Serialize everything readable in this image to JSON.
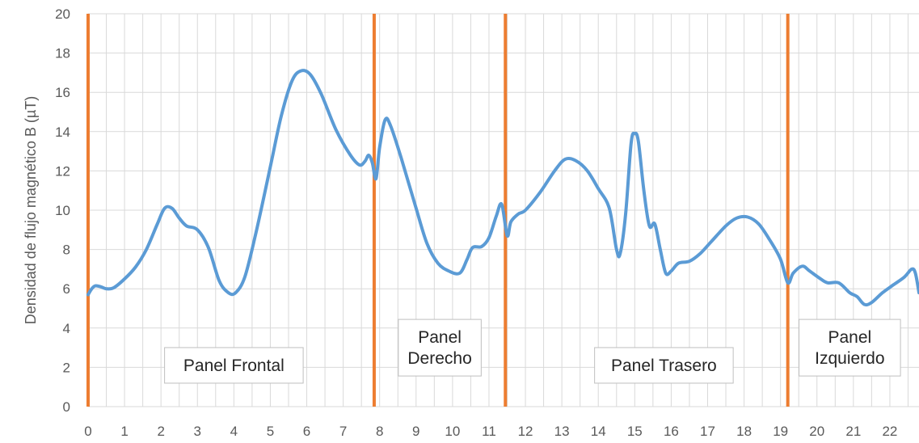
{
  "chart_data": {
    "type": "line",
    "xlabel": "",
    "ylabel": "Densidad de flujo magnético B (µT)",
    "xlim": [
      0,
      22.8
    ],
    "ylim": [
      0,
      20
    ],
    "x_ticks": [
      "0",
      "1",
      "2",
      "3",
      "4",
      "5",
      "6",
      "7",
      "8",
      "9",
      "10",
      "11",
      "12",
      "13",
      "14",
      "15",
      "16",
      "17",
      "18",
      "19",
      "20",
      "21",
      "22"
    ],
    "y_ticks": [
      "0",
      "2",
      "4",
      "6",
      "8",
      "10",
      "12",
      "14",
      "16",
      "18",
      "20"
    ],
    "grid": true,
    "line_color": "#5b9bd5",
    "divider_color": "#ed7d31",
    "dividers": [
      0,
      7.85,
      11.45,
      19.2
    ],
    "panels": [
      {
        "lines": [
          "Panel Frontal"
        ],
        "x": 4.0,
        "y": 2.1
      },
      {
        "lines": [
          "Panel",
          "Derecho"
        ],
        "x": 9.65,
        "y": 3.0
      },
      {
        "lines": [
          "Panel Trasero"
        ],
        "x": 15.8,
        "y": 2.1
      },
      {
        "lines": [
          "Panel",
          "Izquierdo"
        ],
        "x": 20.9,
        "y": 3.0
      }
    ],
    "series": [
      {
        "points": [
          [
            0.0,
            5.7
          ],
          [
            0.1,
            6.0
          ],
          [
            0.2,
            6.15
          ],
          [
            0.35,
            6.1
          ],
          [
            0.5,
            6.0
          ],
          [
            0.7,
            6.05
          ],
          [
            1.0,
            6.5
          ],
          [
            1.3,
            7.1
          ],
          [
            1.6,
            8.0
          ],
          [
            1.9,
            9.3
          ],
          [
            2.1,
            10.1
          ],
          [
            2.3,
            10.1
          ],
          [
            2.5,
            9.6
          ],
          [
            2.7,
            9.2
          ],
          [
            3.0,
            9.0
          ],
          [
            3.3,
            8.1
          ],
          [
            3.6,
            6.4
          ],
          [
            3.85,
            5.8
          ],
          [
            4.05,
            5.8
          ],
          [
            4.3,
            6.6
          ],
          [
            4.6,
            8.8
          ],
          [
            5.0,
            12.2
          ],
          [
            5.3,
            14.8
          ],
          [
            5.6,
            16.6
          ],
          [
            5.85,
            17.1
          ],
          [
            6.1,
            16.9
          ],
          [
            6.4,
            15.9
          ],
          [
            6.8,
            14.1
          ],
          [
            7.2,
            12.8
          ],
          [
            7.45,
            12.3
          ],
          [
            7.6,
            12.5
          ],
          [
            7.7,
            12.8
          ],
          [
            7.8,
            12.4
          ],
          [
            7.9,
            11.6
          ],
          [
            8.0,
            13.2
          ],
          [
            8.15,
            14.6
          ],
          [
            8.3,
            14.3
          ],
          [
            8.6,
            12.6
          ],
          [
            9.0,
            10.1
          ],
          [
            9.3,
            8.3
          ],
          [
            9.6,
            7.3
          ],
          [
            9.9,
            6.9
          ],
          [
            10.2,
            6.8
          ],
          [
            10.4,
            7.5
          ],
          [
            10.55,
            8.1
          ],
          [
            10.8,
            8.15
          ],
          [
            11.0,
            8.6
          ],
          [
            11.2,
            9.7
          ],
          [
            11.35,
            10.3
          ],
          [
            11.5,
            8.7
          ],
          [
            11.6,
            9.4
          ],
          [
            11.8,
            9.8
          ],
          [
            12.0,
            10.0
          ],
          [
            12.4,
            10.9
          ],
          [
            12.8,
            12.0
          ],
          [
            13.1,
            12.6
          ],
          [
            13.4,
            12.5
          ],
          [
            13.7,
            12.0
          ],
          [
            14.0,
            11.1
          ],
          [
            14.3,
            10.1
          ],
          [
            14.5,
            8.0
          ],
          [
            14.6,
            7.8
          ],
          [
            14.75,
            9.8
          ],
          [
            14.9,
            13.4
          ],
          [
            15.0,
            13.9
          ],
          [
            15.1,
            13.5
          ],
          [
            15.25,
            11.0
          ],
          [
            15.4,
            9.2
          ],
          [
            15.55,
            9.3
          ],
          [
            15.7,
            8.0
          ],
          [
            15.85,
            6.8
          ],
          [
            16.0,
            6.9
          ],
          [
            16.2,
            7.3
          ],
          [
            16.5,
            7.4
          ],
          [
            16.8,
            7.8
          ],
          [
            17.1,
            8.4
          ],
          [
            17.5,
            9.2
          ],
          [
            17.8,
            9.6
          ],
          [
            18.1,
            9.65
          ],
          [
            18.4,
            9.3
          ],
          [
            18.7,
            8.5
          ],
          [
            19.0,
            7.5
          ],
          [
            19.2,
            6.3
          ],
          [
            19.35,
            6.8
          ],
          [
            19.6,
            7.15
          ],
          [
            19.8,
            6.9
          ],
          [
            20.1,
            6.5
          ],
          [
            20.3,
            6.3
          ],
          [
            20.6,
            6.3
          ],
          [
            20.9,
            5.8
          ],
          [
            21.1,
            5.6
          ],
          [
            21.3,
            5.2
          ],
          [
            21.5,
            5.3
          ],
          [
            21.8,
            5.8
          ],
          [
            22.1,
            6.2
          ],
          [
            22.4,
            6.6
          ],
          [
            22.6,
            7.0
          ],
          [
            22.7,
            6.8
          ],
          [
            22.8,
            5.8
          ]
        ]
      }
    ]
  }
}
